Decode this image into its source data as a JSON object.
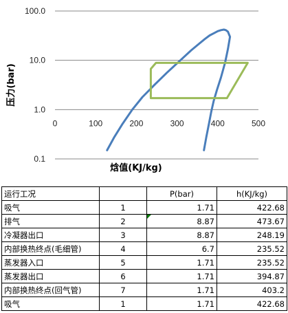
{
  "chart_data": {
    "type": "line",
    "xlabel": "焓值(KJ/kg)",
    "ylabel": "压力(bar)",
    "xlim": [
      0,
      500
    ],
    "ylim": [
      0.1,
      100
    ],
    "yscale": "log",
    "x_ticks": [
      "0",
      "100",
      "200",
      "300",
      "400",
      "500"
    ],
    "y_ticks": [
      "0.1",
      "1.0",
      "10.0",
      "100.0"
    ],
    "grid": "horizontal",
    "series": [
      {
        "color": "#4a7ebb",
        "x": [
          128,
          145,
          165,
          190,
          215,
          245,
          275,
          305,
          335,
          355,
          368,
          380,
          392,
          400,
          408,
          415,
          420,
          425,
          430,
          425,
          418,
          408,
          398,
          390,
          384,
          378,
          372,
          366
        ],
        "y": [
          0.15,
          0.27,
          0.5,
          1.0,
          1.8,
          3.2,
          5.6,
          9.5,
          16,
          22,
          27,
          32,
          36,
          39,
          41,
          42,
          41,
          38,
          30,
          17,
          9,
          4.5,
          2.5,
          1.5,
          0.9,
          0.5,
          0.28,
          0.15
        ]
      },
      {
        "color": "#9bbb59",
        "x": [
          422.68,
          473.67,
          248.19,
          235.52,
          235.52,
          394.87,
          422.68
        ],
        "y": [
          1.71,
          8.87,
          8.87,
          6.7,
          1.71,
          1.71,
          1.71
        ]
      }
    ]
  },
  "table": {
    "headers": [
      "运行工况",
      "",
      "P(bar)",
      "h(KJ/kg)"
    ],
    "rows": [
      {
        "label": "吸气",
        "idx": "1",
        "p": "1.71",
        "h": "422.68"
      },
      {
        "label": "排气",
        "idx": "2",
        "p": "8.87",
        "h": "473.67"
      },
      {
        "label": "冷凝器出口",
        "idx": "3",
        "p": "8.87",
        "h": "248.19"
      },
      {
        "label": "内部换热终点(毛细管)",
        "idx": "4",
        "p": "6.7",
        "h": "235.52"
      },
      {
        "label": "蒸发器入口",
        "idx": "5",
        "p": "1.71",
        "h": "235.52"
      },
      {
        "label": "蒸发器出口",
        "idx": "6",
        "p": "1.71",
        "h": "394.87"
      },
      {
        "label": "内部换热终点(回气管)",
        "idx": "7",
        "p": "1.71",
        "h": "403.2"
      },
      {
        "label": "吸气",
        "idx": "1",
        "p": "1.71",
        "h": "422.68"
      }
    ]
  },
  "colors": {
    "saturation_curve": "#4a7ebb",
    "cycle": "#9bbb59",
    "grid": "#888888",
    "cell_marker": "#0a7a0a"
  }
}
